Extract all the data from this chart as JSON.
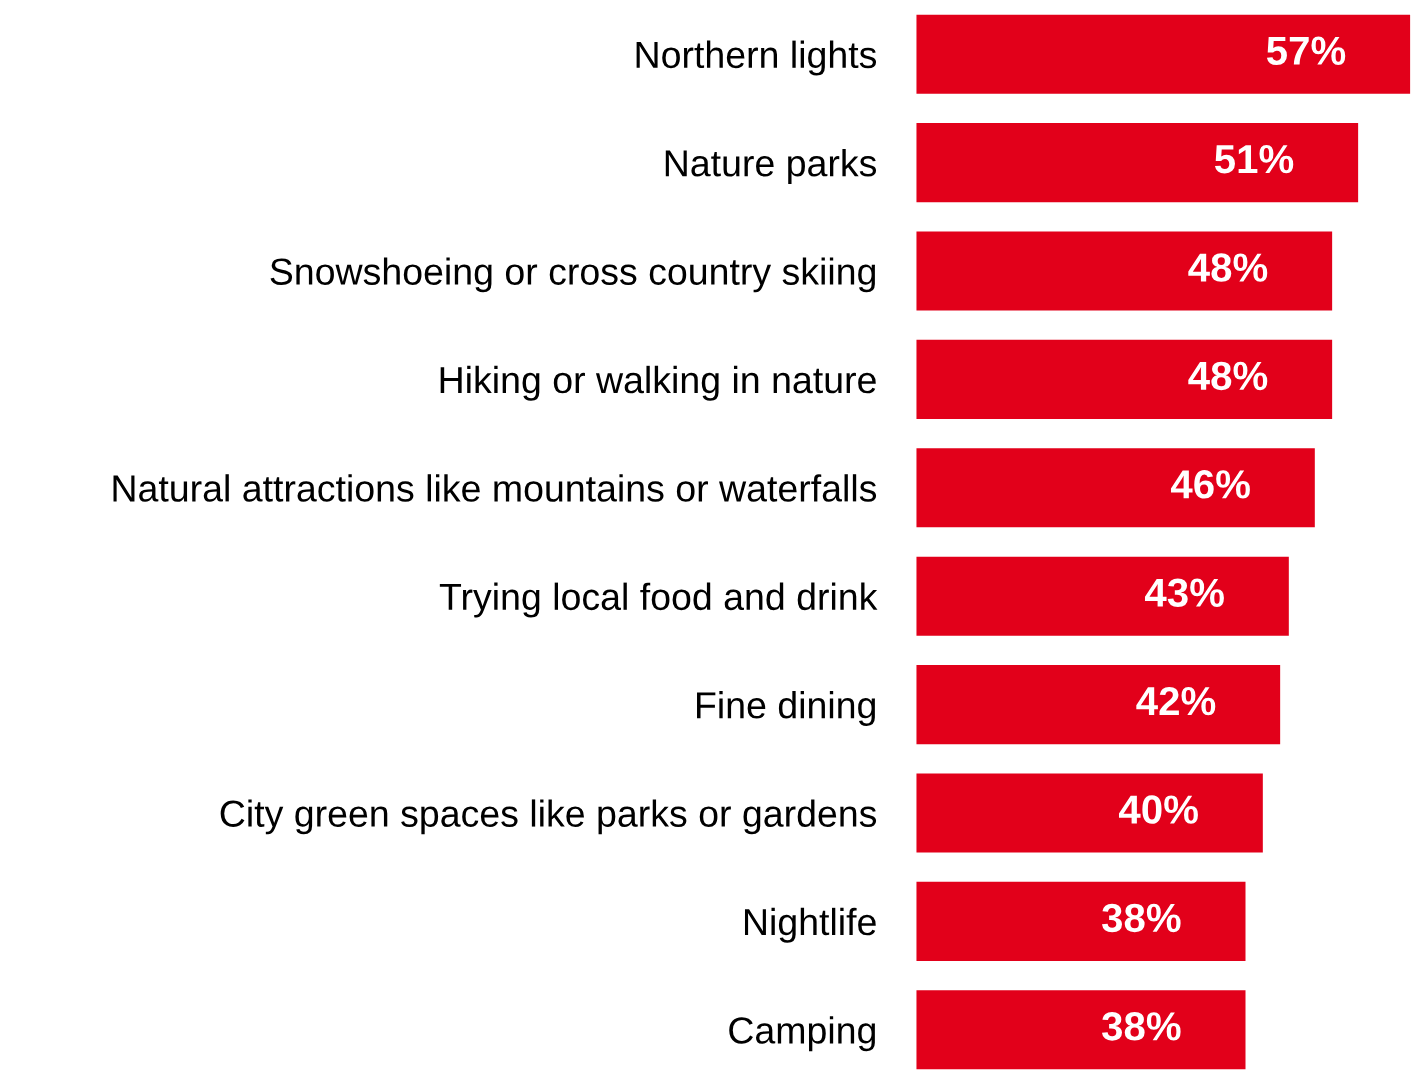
{
  "chart_data": {
    "type": "bar",
    "orientation": "horizontal",
    "categories": [
      "Northern lights",
      "Nature parks",
      "Snowshoeing or cross country skiing",
      "Hiking or walking in nature",
      "Natural attractions like mountains or waterfalls",
      "Trying local food and drink",
      "Fine dining",
      "City green spaces like parks or gardens",
      "Nightlife",
      "Camping"
    ],
    "values": [
      57,
      51,
      48,
      48,
      46,
      43,
      42,
      40,
      38,
      38
    ],
    "value_labels": [
      "57%",
      "51%",
      "48%",
      "48%",
      "46%",
      "43%",
      "42%",
      "40%",
      "38%",
      "38%"
    ],
    "color": "#e2001a",
    "grid": false,
    "legend": false
  }
}
